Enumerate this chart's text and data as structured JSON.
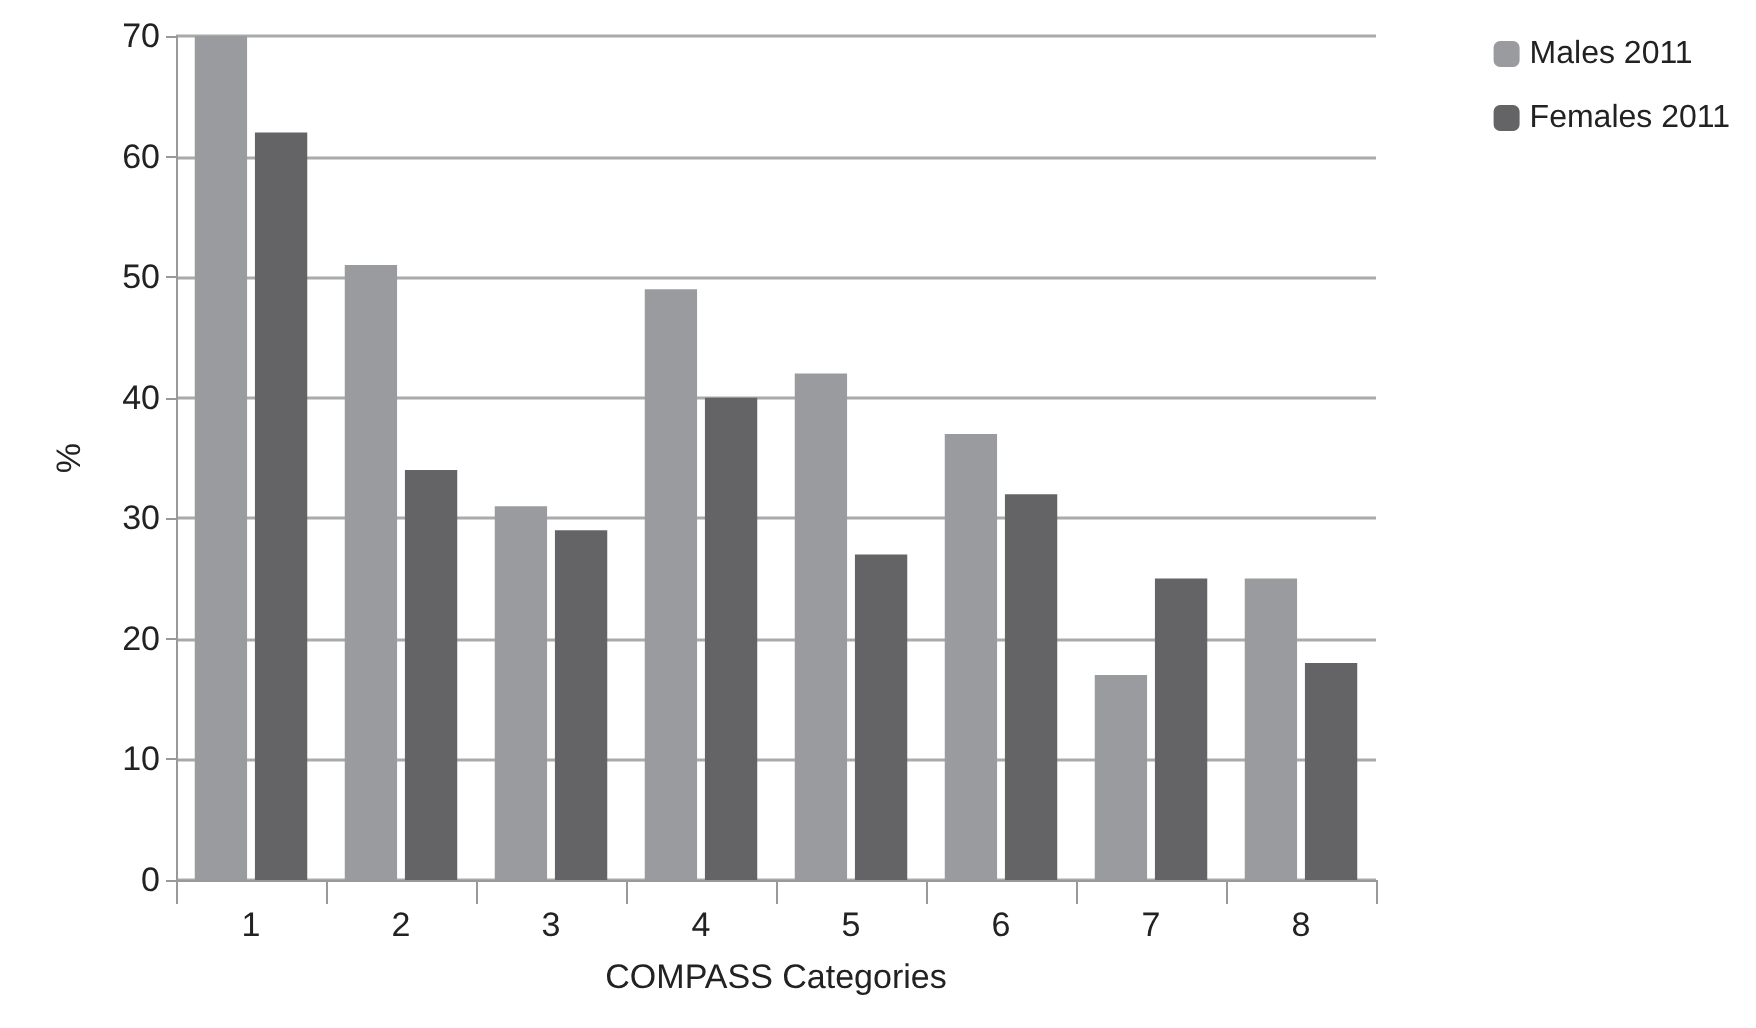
{
  "chart_data": {
    "type": "bar",
    "xlabel": "COMPASS Categories",
    "ylabel": "%",
    "categories": [
      "1",
      "2",
      "3",
      "4",
      "5",
      "6",
      "7",
      "8"
    ],
    "series": [
      {
        "name": "Males 2011",
        "color": "#9a9b9e",
        "values": [
          70,
          51,
          31,
          49,
          42,
          37,
          17,
          25
        ]
      },
      {
        "name": "Females 2011",
        "color": "#646466",
        "values": [
          62,
          34,
          29,
          40,
          27,
          32,
          25,
          18
        ]
      }
    ],
    "ylim": [
      0,
      70
    ],
    "yticks": [
      0,
      10,
      20,
      30,
      40,
      50,
      60,
      70
    ],
    "grid": "y",
    "legend": "top right"
  }
}
